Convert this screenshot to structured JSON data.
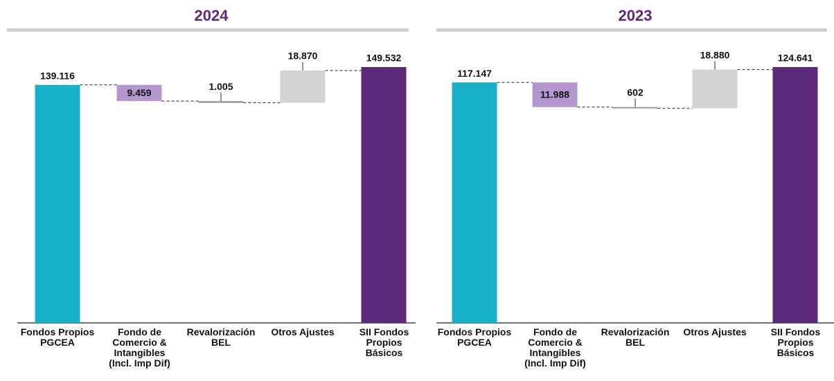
{
  "chart_data": [
    {
      "type": "waterfall",
      "title": "2024",
      "categories": [
        "Fondos Propios PGCEA",
        "Fondo de Comercio & Intangibles (Incl. Imp Dif)",
        "Revalorización BEL",
        "Otros Ajustes",
        "SII Fondos Propios Básicos"
      ],
      "values": [
        139116,
        -9459,
        -1005,
        18870,
        149532
      ],
      "value_labels": [
        "139.116",
        "9.459",
        "1.005",
        "18.870",
        "149.532"
      ],
      "measures": [
        "absolute",
        "relative",
        "relative",
        "relative",
        "absolute"
      ],
      "colors": [
        "#17b0c4",
        "#b597cf",
        "#9a9a9a",
        "#d3d3d3",
        "#5c2a78"
      ]
    },
    {
      "type": "waterfall",
      "title": "2023",
      "categories": [
        "Fondos Propios PGCEA",
        "Fondo de Comercio & Intangibles (Incl. Imp Dif)",
        "Revalorización BEL",
        "Otros Ajustes",
        "SII Fondos Propios Básicos"
      ],
      "values": [
        117147,
        -11988,
        -602,
        18880,
        124641
      ],
      "value_labels": [
        "117.147",
        "11.988",
        "602",
        "18.880",
        "124.641"
      ],
      "measures": [
        "absolute",
        "relative",
        "relative",
        "relative",
        "absolute"
      ],
      "colors": [
        "#17b0c4",
        "#b597cf",
        "#9a9a9a",
        "#d3d3d3",
        "#5c2a78"
      ]
    }
  ]
}
